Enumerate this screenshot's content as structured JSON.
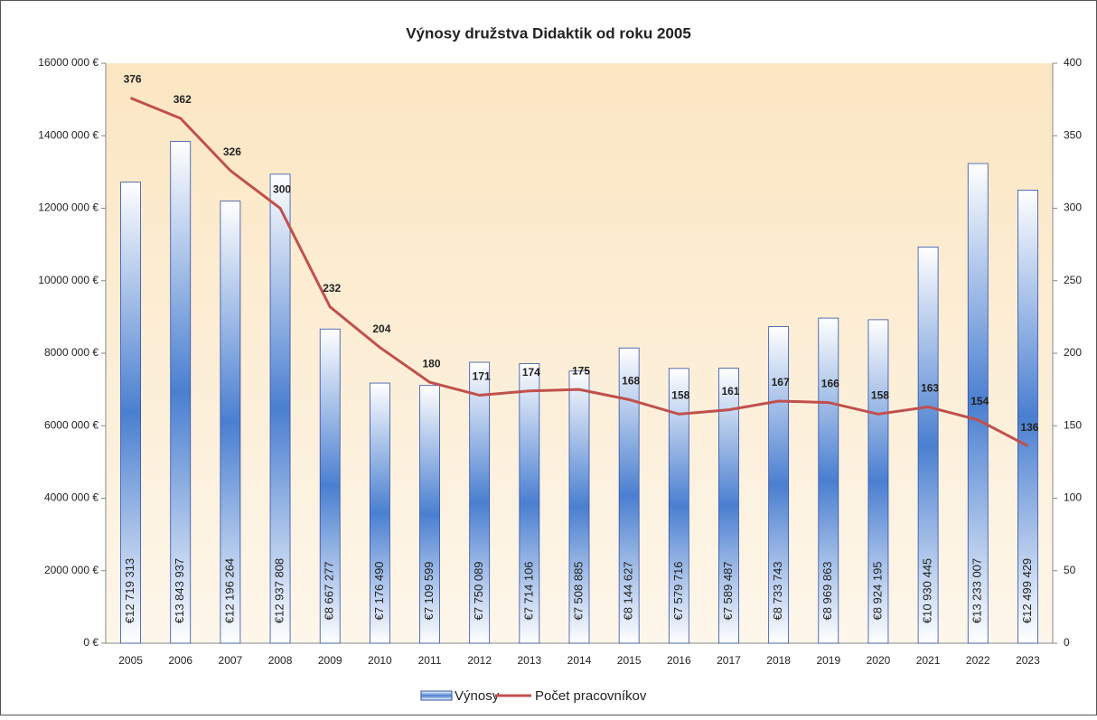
{
  "chart_data": {
    "type": "bar_line",
    "title": "Výnosy družstva Didaktik od roku 2005",
    "categories": [
      "2005",
      "2006",
      "2007",
      "2008",
      "2009",
      "2010",
      "2011",
      "2012",
      "2013",
      "2014",
      "2015",
      "2016",
      "2017",
      "2018",
      "2019",
      "2020",
      "2021",
      "2022",
      "2023"
    ],
    "series": [
      {
        "name": "Výnosy",
        "color": "#4a7fd0",
        "type": "bar",
        "values": [
          12719313,
          13843937,
          12196264,
          12937808,
          8667277,
          7176490,
          7109599,
          7750089,
          7714106,
          7508885,
          8144627,
          7579716,
          7589487,
          8733743,
          8969863,
          8924195,
          10930445,
          13233007,
          12499429
        ],
        "value_labels": [
          "€12 719 313",
          "€13 843 937",
          "€12 196 264",
          "€12 937 808",
          "€8 667 277",
          "€7 176 490",
          "€7 109 599",
          "€7 750 089",
          "€7 714 106",
          "€7 508 885",
          "€8 144 627",
          "€7 579 716",
          "€7 589 487",
          "€8 733 743",
          "€8 969 863",
          "€8 924 195",
          "€10 930 445",
          "€13 233 007",
          "€12 499 429"
        ]
      },
      {
        "name": "Počet pracovníkov",
        "color": "#c0504d",
        "type": "line",
        "axis": "y2",
        "values": [
          376,
          362,
          326,
          300,
          232,
          204,
          180,
          171,
          174,
          175,
          168,
          158,
          161,
          167,
          166,
          158,
          163,
          154,
          136
        ]
      }
    ],
    "ylim": [
      0,
      16000000
    ],
    "yticks": [
      {
        "value": 0,
        "label": "0 €"
      },
      {
        "value": 2000000,
        "label": "2000 000 €"
      },
      {
        "value": 4000000,
        "label": "4000 000 €"
      },
      {
        "value": 6000000,
        "label": "6000 000 €"
      },
      {
        "value": 8000000,
        "label": "8000 000 €"
      },
      {
        "value": 10000000,
        "label": "10000 000 €"
      },
      {
        "value": 12000000,
        "label": "12000 000 €"
      },
      {
        "value": 14000000,
        "label": "14000 000 €"
      },
      {
        "value": 16000000,
        "label": "16000 000 €"
      }
    ],
    "y2lim": [
      0,
      400
    ],
    "y2ticks": [
      0,
      50,
      100,
      150,
      200,
      250,
      300,
      350,
      400
    ],
    "grid": false
  }
}
